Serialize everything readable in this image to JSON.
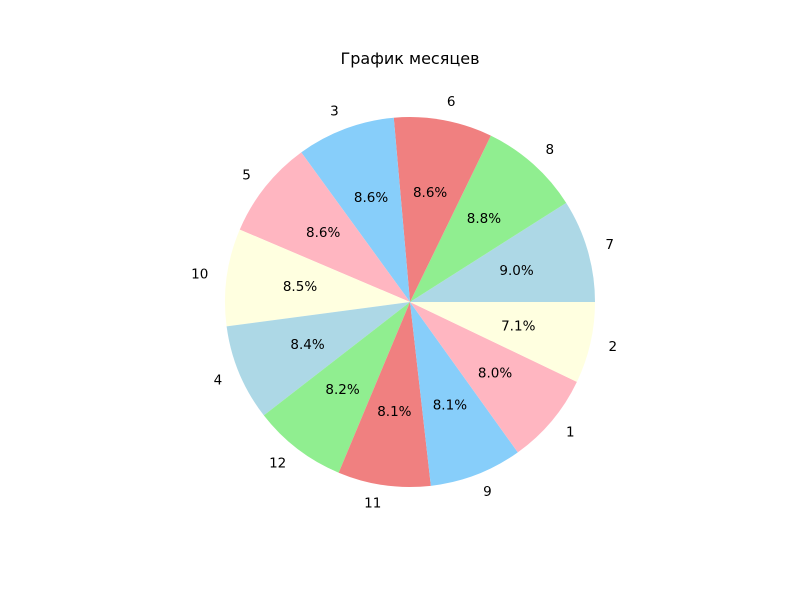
{
  "chart_data": {
    "type": "pie",
    "title": "График месяцев",
    "start_angle_deg": 0,
    "direction": "counterclockwise",
    "slices": [
      {
        "label": "7",
        "percent": 9.0,
        "display": "9.0%",
        "color": "#add8e6"
      },
      {
        "label": "8",
        "percent": 8.8,
        "display": "8.8%",
        "color": "#90ee90"
      },
      {
        "label": "6",
        "percent": 8.6,
        "display": "8.6%",
        "color": "#f08080"
      },
      {
        "label": "3",
        "percent": 8.6,
        "display": "8.6%",
        "color": "#87cefa"
      },
      {
        "label": "5",
        "percent": 8.6,
        "display": "8.6%",
        "color": "#ffb6c1"
      },
      {
        "label": "10",
        "percent": 8.5,
        "display": "8.5%",
        "color": "#ffffe0"
      },
      {
        "label": "4",
        "percent": 8.4,
        "display": "8.4%",
        "color": "#add8e6"
      },
      {
        "label": "12",
        "percent": 8.2,
        "display": "8.2%",
        "color": "#90ee90"
      },
      {
        "label": "11",
        "percent": 8.1,
        "display": "8.1%",
        "color": "#f08080"
      },
      {
        "label": "9",
        "percent": 8.1,
        "display": "8.1%",
        "color": "#87cefa"
      },
      {
        "label": "1",
        "percent": 8.0,
        "display": "8.0%",
        "color": "#ffb6c1"
      },
      {
        "label": "2",
        "percent": 7.1,
        "display": "7.1%",
        "color": "#ffffe0"
      }
    ]
  }
}
